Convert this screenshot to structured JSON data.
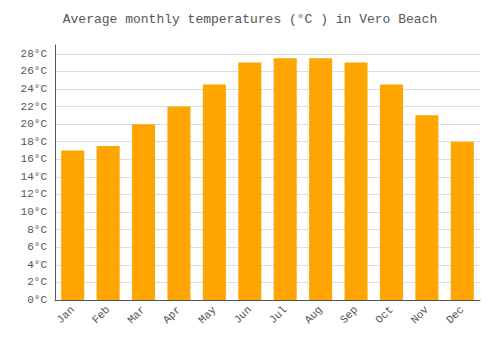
{
  "chart_data": {
    "type": "bar",
    "title": "Average monthly temperatures (°C ) in Vero Beach",
    "categories": [
      "Jan",
      "Feb",
      "Mar",
      "Apr",
      "May",
      "Jun",
      "Jul",
      "Aug",
      "Sep",
      "Oct",
      "Nov",
      "Dec"
    ],
    "values": [
      17,
      17.5,
      20,
      22,
      24.5,
      27,
      27.5,
      27.5,
      27,
      24.5,
      21,
      18
    ],
    "color": "#FFA500",
    "ylim": [
      0,
      29
    ],
    "yticks": [
      {
        "value": 0,
        "label": "0°C"
      },
      {
        "value": 2,
        "label": "2°C"
      },
      {
        "value": 4,
        "label": "4°C"
      },
      {
        "value": 6,
        "label": "6°C"
      },
      {
        "value": 8,
        "label": "8°C"
      },
      {
        "value": 10,
        "label": "10°C"
      },
      {
        "value": 12,
        "label": "12°C"
      },
      {
        "value": 14,
        "label": "14°C"
      },
      {
        "value": 16,
        "label": "16°C"
      },
      {
        "value": 18,
        "label": "18°C"
      },
      {
        "value": 20,
        "label": "20°C"
      },
      {
        "value": 22,
        "label": "22°C"
      },
      {
        "value": 24,
        "label": "24°C"
      },
      {
        "value": 26,
        "label": "26°C"
      },
      {
        "value": 28,
        "label": "28°C"
      }
    ],
    "grid": true
  }
}
